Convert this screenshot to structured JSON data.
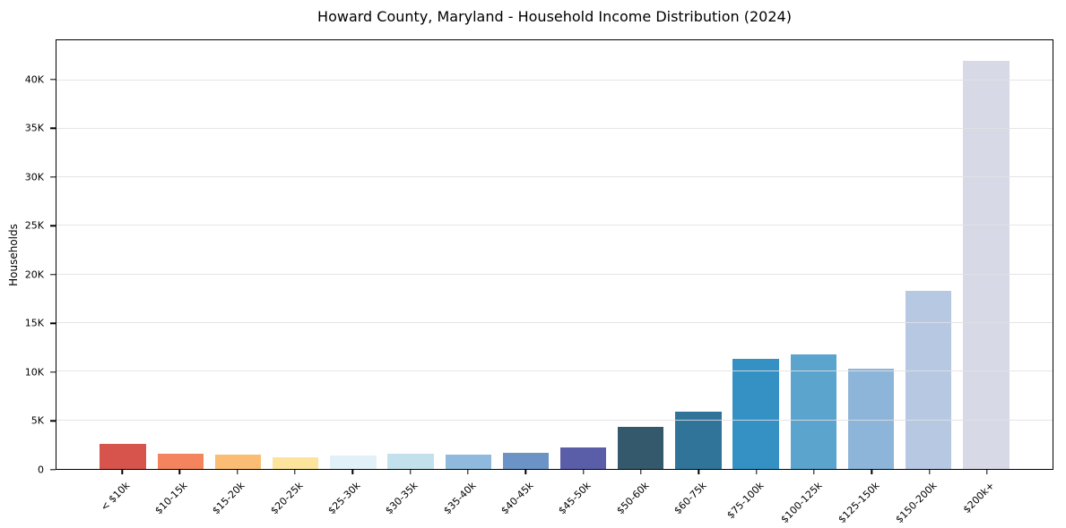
{
  "chart_data": {
    "type": "bar",
    "title": "Howard County, Maryland - Household Income Distribution (2024)",
    "xlabel": "",
    "ylabel": "Households",
    "categories": [
      "< $10k",
      "$10-15k",
      "$15-20k",
      "$20-25k",
      "$25-30k",
      "$30-35k",
      "$35-40k",
      "$40-45k",
      "$45-50k",
      "$50-60k",
      "$60-75k",
      "$75-100k",
      "$100-125k",
      "$125-150k",
      "$150-200k",
      "$200k+"
    ],
    "values": [
      2600,
      1600,
      1500,
      1200,
      1400,
      1550,
      1450,
      1700,
      2200,
      4300,
      5900,
      11300,
      11800,
      10300,
      18300,
      42000
    ],
    "bar_colors": [
      "#d6544c",
      "#f4845e",
      "#fbbc74",
      "#fce49c",
      "#e2f1f8",
      "#c2e1ec",
      "#8fbadd",
      "#6b93c5",
      "#5a5ea8",
      "#35596c",
      "#30749a",
      "#3590c4",
      "#5aa4cd",
      "#8cb5d9",
      "#b7c8e2",
      "#d8d9e7"
    ],
    "ylim": [
      0,
      44100
    ],
    "yticks": {
      "values": [
        0,
        5000,
        10000,
        15000,
        20000,
        25000,
        30000,
        35000,
        40000
      ],
      "labels": [
        "0",
        "5K",
        "10K",
        "15K",
        "20K",
        "25K",
        "30K",
        "35K",
        "40K"
      ]
    },
    "grid": "horizontal",
    "gridline_color": "#e4e4e7",
    "spine_color": "#000000",
    "background": "#ffffff",
    "bar_width_fraction": 0.8,
    "xtick_rotation": 45,
    "legend": "none"
  }
}
